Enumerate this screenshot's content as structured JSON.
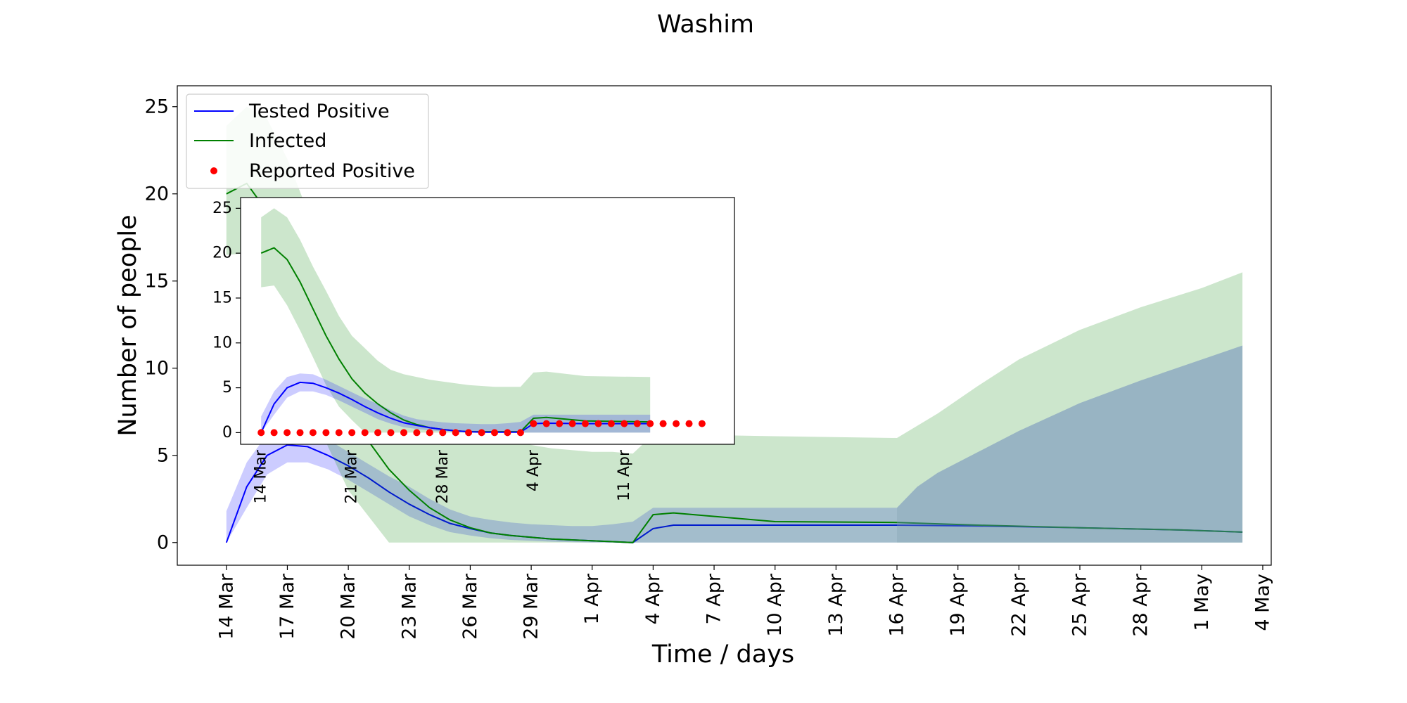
{
  "chart_data": [
    {
      "type": "line",
      "title": "Washim",
      "xlabel": "Time / days",
      "ylabel": "Number of people",
      "x_start_date": "2020-03-14",
      "x_ticks": [
        "14 Mar",
        "17 Mar",
        "20 Mar",
        "23 Mar",
        "26 Mar",
        "29 Mar",
        "1 Apr",
        "4 Apr",
        "7 Apr",
        "10 Apr",
        "13 Apr",
        "16 Apr",
        "19 Apr",
        "22 Apr",
        "25 Apr",
        "28 Apr",
        "1 May",
        "4 May"
      ],
      "y_ticks": [
        0,
        5,
        10,
        15,
        20,
        25
      ],
      "xlim": [
        "2020-03-11T14:00",
        "2020-05-04T10:00"
      ],
      "ylim": [
        -1.3,
        26.2
      ],
      "legend_position": "upper-left",
      "grid": false,
      "series": [
        {
          "name": "Tested Positive",
          "kind": "line",
          "color": "#0000ff",
          "x": [
            "2020-03-14",
            "2020-03-15",
            "2020-03-16",
            "2020-03-17",
            "2020-03-18",
            "2020-03-19",
            "2020-03-20",
            "2020-03-21",
            "2020-03-22",
            "2020-03-23",
            "2020-03-24",
            "2020-03-25",
            "2020-03-26",
            "2020-03-27",
            "2020-03-28",
            "2020-03-29",
            "2020-03-30",
            "2020-03-31",
            "2020-04-01",
            "2020-04-02",
            "2020-04-03",
            "2020-04-04",
            "2020-04-05",
            "2020-04-10",
            "2020-04-16",
            "2020-04-20",
            "2020-04-25",
            "2020-04-30",
            "2020-05-03"
          ],
          "y": [
            0.0,
            3.2,
            5.0,
            5.6,
            5.5,
            5.0,
            4.4,
            3.7,
            2.9,
            2.2,
            1.6,
            1.1,
            0.8,
            0.55,
            0.4,
            0.3,
            0.2,
            0.15,
            0.1,
            0.05,
            0.0,
            0.8,
            1.0,
            1.0,
            1.0,
            0.95,
            0.85,
            0.72,
            0.6
          ]
        },
        {
          "name": "Tested Positive range",
          "kind": "band",
          "color": "#0000ff",
          "opacity": 0.2,
          "x": [
            "2020-03-14",
            "2020-03-15",
            "2020-03-16",
            "2020-03-17",
            "2020-03-18",
            "2020-03-19",
            "2020-03-20",
            "2020-03-21",
            "2020-03-22",
            "2020-03-23",
            "2020-03-24",
            "2020-03-25",
            "2020-03-26",
            "2020-03-27",
            "2020-03-28",
            "2020-03-29",
            "2020-03-30",
            "2020-03-31",
            "2020-04-01",
            "2020-04-02",
            "2020-04-03",
            "2020-04-04",
            "2020-04-05",
            "2020-04-10",
            "2020-04-16"
          ],
          "lower": [
            0.0,
            2.0,
            3.9,
            4.6,
            4.6,
            4.2,
            3.6,
            2.9,
            2.2,
            1.5,
            1.0,
            0.6,
            0.4,
            0.25,
            0.15,
            0.1,
            0.05,
            0.02,
            0.0,
            0.0,
            0.0,
            0.0,
            0.0,
            0.0,
            0.0
          ],
          "upper": [
            1.8,
            4.6,
            6.2,
            6.6,
            6.5,
            5.9,
            5.2,
            4.5,
            3.8,
            3.2,
            2.5,
            1.9,
            1.5,
            1.3,
            1.15,
            1.05,
            1.0,
            0.95,
            0.95,
            1.05,
            1.2,
            2.0,
            2.0,
            2.0,
            2.0
          ]
        },
        {
          "name": "Infected",
          "kind": "line",
          "color": "#008000",
          "x": [
            "2020-03-14",
            "2020-03-15",
            "2020-03-16",
            "2020-03-17",
            "2020-03-18",
            "2020-03-19",
            "2020-03-20",
            "2020-03-21",
            "2020-03-22",
            "2020-03-23",
            "2020-03-24",
            "2020-03-25",
            "2020-03-26",
            "2020-03-27",
            "2020-03-28",
            "2020-03-29",
            "2020-03-30",
            "2020-03-31",
            "2020-04-01",
            "2020-04-02",
            "2020-04-03",
            "2020-04-04",
            "2020-04-05",
            "2020-04-10",
            "2020-04-16",
            "2020-04-20",
            "2020-04-25",
            "2020-04-30",
            "2020-05-03"
          ],
          "y": [
            20.0,
            20.6,
            19.0,
            16.5,
            13.5,
            10.4,
            7.8,
            5.8,
            4.2,
            3.0,
            2.0,
            1.3,
            0.85,
            0.55,
            0.4,
            0.3,
            0.2,
            0.15,
            0.1,
            0.05,
            0.0,
            1.6,
            1.7,
            1.2,
            1.15,
            1.0,
            0.85,
            0.72,
            0.6
          ]
        },
        {
          "name": "Infected range",
          "kind": "band",
          "color": "#008000",
          "opacity": 0.2,
          "x": [
            "2020-03-14",
            "2020-03-15",
            "2020-03-16",
            "2020-03-17",
            "2020-03-18",
            "2020-03-19",
            "2020-03-20",
            "2020-03-21",
            "2020-03-22",
            "2020-03-23",
            "2020-03-24",
            "2020-03-25",
            "2020-03-26",
            "2020-03-27",
            "2020-03-28",
            "2020-03-29",
            "2020-03-30",
            "2020-03-31",
            "2020-04-01",
            "2020-04-02",
            "2020-04-03",
            "2020-04-04",
            "2020-04-05",
            "2020-04-10",
            "2020-04-16",
            "2020-04-18",
            "2020-04-20",
            "2020-04-22",
            "2020-04-25",
            "2020-04-28",
            "2020-05-01",
            "2020-05-03"
          ],
          "lower": [
            16.5,
            16.6,
            14.5,
            11.5,
            8.5,
            5.5,
            3.0,
            1.5,
            0.0,
            0.0,
            0.0,
            0.0,
            0.0,
            0.0,
            0.0,
            0.0,
            0.0,
            0.0,
            0.0,
            0.0,
            0.0,
            0.0,
            0.0,
            0.0,
            0.0,
            0.0,
            0.0,
            0.0,
            0.0,
            0.0,
            0.0,
            0.0
          ],
          "upper": [
            23.9,
            25.0,
            24.3,
            22.0,
            19.0,
            16.0,
            13.3,
            11.0,
            9.5,
            8.2,
            7.2,
            6.6,
            6.3,
            6.0,
            5.8,
            5.6,
            5.4,
            5.3,
            5.2,
            5.2,
            5.1,
            6.2,
            6.2,
            6.1,
            6.0,
            7.4,
            9.0,
            10.5,
            12.2,
            13.5,
            14.6,
            15.5
          ]
        },
        {
          "name": "Tested Positive upper range",
          "kind": "band",
          "color": "#5878b8",
          "opacity": 0.45,
          "x": [
            "2020-04-16",
            "2020-04-17",
            "2020-04-18",
            "2020-04-20",
            "2020-04-22",
            "2020-04-25",
            "2020-04-28",
            "2020-05-01",
            "2020-05-03"
          ],
          "lower": [
            0,
            0,
            0,
            0,
            0,
            0,
            0,
            0,
            0
          ],
          "upper": [
            2.0,
            3.2,
            4.0,
            5.2,
            6.4,
            8.0,
            9.3,
            10.5,
            11.3
          ]
        }
      ],
      "inset": {
        "x_ticks": [
          "14 Mar",
          "21 Mar",
          "28 Mar",
          "4 Apr",
          "11 Apr"
        ],
        "y_ticks": [
          0,
          5,
          10,
          15,
          20,
          25
        ],
        "xlim": [
          "2020-03-12T10:00",
          "2020-04-19T12:00"
        ],
        "ylim": [
          -1.3,
          26.2
        ],
        "series": [
          {
            "name": "Infected range",
            "kind": "band",
            "color": "#008000",
            "opacity": 0.2,
            "x": [
              "2020-03-14",
              "2020-03-15",
              "2020-03-16",
              "2020-03-17",
              "2020-03-18",
              "2020-03-19",
              "2020-03-20",
              "2020-03-21",
              "2020-03-22",
              "2020-03-23",
              "2020-03-24",
              "2020-03-25",
              "2020-03-26",
              "2020-03-27",
              "2020-03-28",
              "2020-03-29",
              "2020-03-30",
              "2020-03-31",
              "2020-04-01",
              "2020-04-02",
              "2020-04-03",
              "2020-04-04",
              "2020-04-05",
              "2020-04-08",
              "2020-04-13"
            ],
            "lower": [
              16.2,
              16.4,
              14.2,
              11.4,
              8.4,
              5.3,
              2.9,
              1.4,
              0.0,
              0.0,
              0.0,
              0.0,
              0.0,
              0.0,
              0.0,
              0.0,
              0.0,
              0.0,
              0.0,
              0.0,
              0.0,
              0.0,
              0.0,
              0.0,
              0.0
            ],
            "upper": [
              24.0,
              25.0,
              24.0,
              21.5,
              18.5,
              15.8,
              13.0,
              10.8,
              9.4,
              8.0,
              7.0,
              6.5,
              6.2,
              5.9,
              5.7,
              5.5,
              5.3,
              5.2,
              5.1,
              5.1,
              5.1,
              6.7,
              6.8,
              6.3,
              6.2
            ]
          },
          {
            "name": "Tested Positive range",
            "kind": "band",
            "color": "#0000ff",
            "opacity": 0.2,
            "x": [
              "2020-03-14",
              "2020-03-15",
              "2020-03-16",
              "2020-03-17",
              "2020-03-18",
              "2020-03-19",
              "2020-03-20",
              "2020-03-21",
              "2020-03-22",
              "2020-03-23",
              "2020-03-24",
              "2020-03-25",
              "2020-03-26",
              "2020-03-27",
              "2020-03-28",
              "2020-03-29",
              "2020-03-30",
              "2020-03-31",
              "2020-04-01",
              "2020-04-02",
              "2020-04-03",
              "2020-04-04",
              "2020-04-05",
              "2020-04-08",
              "2020-04-13"
            ],
            "lower": [
              0.0,
              2.0,
              3.9,
              4.6,
              4.6,
              4.2,
              3.6,
              2.9,
              2.2,
              1.5,
              1.0,
              0.6,
              0.4,
              0.25,
              0.15,
              0.1,
              0.05,
              0.02,
              0.0,
              0.0,
              0.0,
              0.0,
              0.0,
              0.0,
              0.0
            ],
            "upper": [
              1.8,
              4.6,
              6.2,
              6.6,
              6.5,
              5.9,
              5.2,
              4.5,
              3.8,
              3.2,
              2.5,
              1.9,
              1.5,
              1.3,
              1.15,
              1.05,
              1.0,
              0.95,
              0.95,
              1.05,
              1.2,
              2.0,
              2.0,
              2.0,
              2.0
            ]
          },
          {
            "name": "Infected",
            "kind": "line",
            "color": "#008000",
            "x": [
              "2020-03-14",
              "2020-03-15",
              "2020-03-16",
              "2020-03-17",
              "2020-03-18",
              "2020-03-19",
              "2020-03-20",
              "2020-03-21",
              "2020-03-22",
              "2020-03-23",
              "2020-03-24",
              "2020-03-25",
              "2020-03-26",
              "2020-03-27",
              "2020-03-28",
              "2020-03-29",
              "2020-03-30",
              "2020-03-31",
              "2020-04-01",
              "2020-04-02",
              "2020-04-03",
              "2020-04-04",
              "2020-04-05",
              "2020-04-08",
              "2020-04-13"
            ],
            "y": [
              20.0,
              20.6,
              19.3,
              16.8,
              13.8,
              10.8,
              8.2,
              6.0,
              4.4,
              3.2,
              2.2,
              1.4,
              0.9,
              0.55,
              0.35,
              0.2,
              0.1,
              0.1,
              0.1,
              0.1,
              0.1,
              1.6,
              1.7,
              1.3,
              1.2
            ]
          },
          {
            "name": "Tested Positive",
            "kind": "line",
            "color": "#0000ff",
            "x": [
              "2020-03-14",
              "2020-03-15",
              "2020-03-16",
              "2020-03-17",
              "2020-03-18",
              "2020-03-19",
              "2020-03-20",
              "2020-03-21",
              "2020-03-22",
              "2020-03-23",
              "2020-03-24",
              "2020-03-25",
              "2020-03-26",
              "2020-03-27",
              "2020-03-28",
              "2020-03-29",
              "2020-03-30",
              "2020-03-31",
              "2020-04-01",
              "2020-04-02",
              "2020-04-03",
              "2020-04-04",
              "2020-04-05",
              "2020-04-08",
              "2020-04-13"
            ],
            "y": [
              0.0,
              3.2,
              5.0,
              5.6,
              5.5,
              5.0,
              4.4,
              3.7,
              2.9,
              2.2,
              1.6,
              1.1,
              0.8,
              0.55,
              0.35,
              0.2,
              0.1,
              0.05,
              0.05,
              0.05,
              0.05,
              1.0,
              1.05,
              1.0,
              1.0
            ]
          },
          {
            "name": "Reported Positive",
            "kind": "scatter",
            "color": "#ff0000",
            "x": [
              "2020-03-14",
              "2020-03-15",
              "2020-03-16",
              "2020-03-17",
              "2020-03-18",
              "2020-03-19",
              "2020-03-20",
              "2020-03-21",
              "2020-03-22",
              "2020-03-23",
              "2020-03-24",
              "2020-03-25",
              "2020-03-26",
              "2020-03-27",
              "2020-03-28",
              "2020-03-29",
              "2020-03-30",
              "2020-03-31",
              "2020-04-01",
              "2020-04-02",
              "2020-04-03",
              "2020-04-04",
              "2020-04-05",
              "2020-04-06",
              "2020-04-07",
              "2020-04-08",
              "2020-04-09",
              "2020-04-10",
              "2020-04-11",
              "2020-04-12",
              "2020-04-13",
              "2020-04-14",
              "2020-04-15",
              "2020-04-16",
              "2020-04-17"
            ],
            "y": [
              0,
              0,
              0,
              0,
              0,
              0,
              0,
              0,
              0,
              0,
              0,
              0,
              0,
              0,
              0,
              0,
              0,
              0,
              0,
              0,
              0,
              1,
              1,
              1,
              1,
              1,
              1,
              1,
              1,
              1,
              1,
              1,
              1,
              1,
              1
            ]
          }
        ]
      }
    }
  ]
}
